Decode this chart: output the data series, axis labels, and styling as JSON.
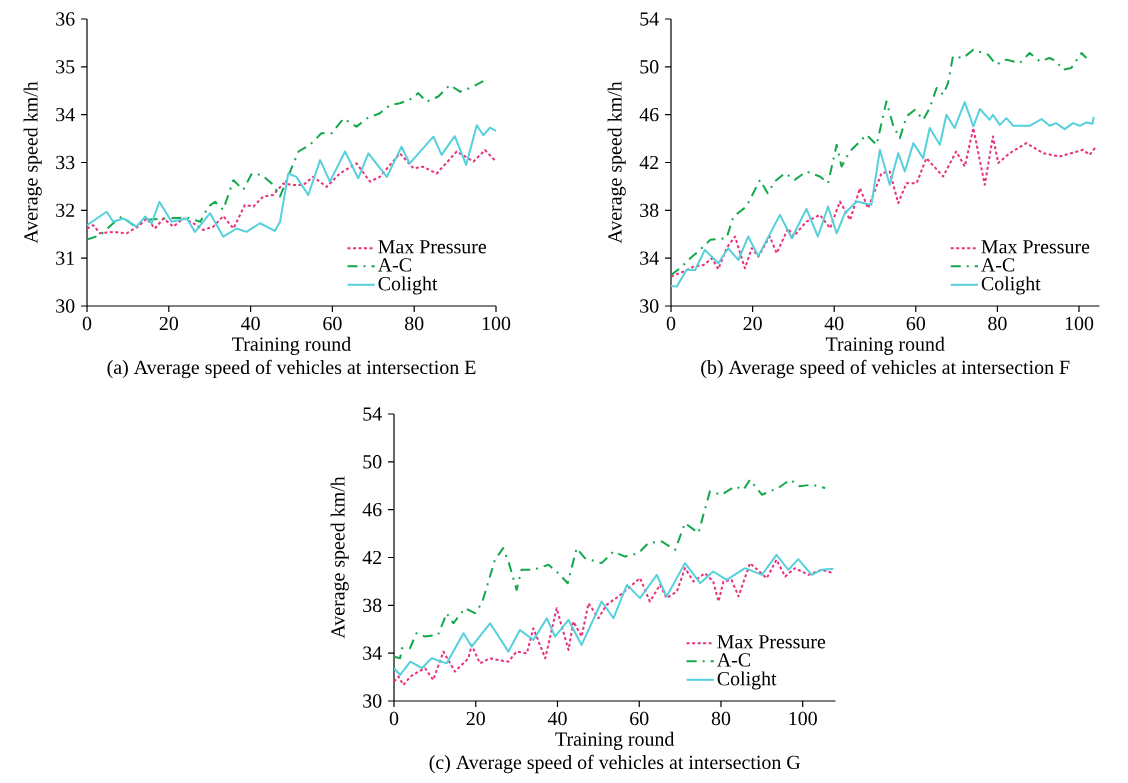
{
  "chart_data": [
    {
      "type": "line",
      "title": "(a) Average speed of vehicles at intersection E",
      "xlabel": "Training round",
      "ylabel": "Average speed km/h",
      "xlim": [
        0,
        100
      ],
      "ylim": [
        30,
        36
      ],
      "xticks": [
        0,
        20,
        40,
        60,
        80,
        100
      ],
      "yticks": [
        30,
        31,
        32,
        33,
        34,
        35,
        36
      ],
      "legend": "bottom right",
      "series": [
        {
          "name": "Max Pressure",
          "color": "#e8307f",
          "line_style": "dotted",
          "x": [
            0,
            1.5,
            3.2,
            6.4,
            9.7,
            12.5,
            14.6,
            16.6,
            18.7,
            21.1,
            23.6,
            26,
            28.4,
            30.9,
            33.3,
            35.8,
            38.6,
            40.7,
            43.1,
            45.5,
            48,
            50.4,
            52.9,
            55.3,
            58.6,
            61.8,
            65.9,
            69.2,
            71.6,
            76.5,
            79.8,
            82.2,
            85.5,
            90.4,
            94.5,
            97.3,
            100
          ],
          "values": [
            31.62,
            31.69,
            31.52,
            31.55,
            31.52,
            31.66,
            31.83,
            31.62,
            31.83,
            31.66,
            31.83,
            31.73,
            31.59,
            31.66,
            31.88,
            31.62,
            32.11,
            32.08,
            32.29,
            32.32,
            32.56,
            32.53,
            32.53,
            32.7,
            32.49,
            32.77,
            32.98,
            32.6,
            32.7,
            33.19,
            32.88,
            32.91,
            32.77,
            33.23,
            33.02,
            33.26,
            33.02
          ]
        },
        {
          "name": "A-C",
          "color": "#13a84b",
          "line_style": "dashdot",
          "x": [
            0,
            3.2,
            6.4,
            8.5,
            11.3,
            14.6,
            18.7,
            24.4,
            27.7,
            29.7,
            31.3,
            33.3,
            35.8,
            38.2,
            40.3,
            42.7,
            45.6,
            47.2,
            50,
            51.7,
            54.5,
            57.3,
            59.8,
            62.7,
            65.9,
            68.4,
            71.6,
            74.1,
            76.5,
            78.9,
            81,
            83,
            85.9,
            88.7,
            91.2,
            94,
            96.9
          ],
          "values": [
            31.39,
            31.48,
            31.73,
            31.87,
            31.69,
            31.8,
            31.83,
            31.85,
            31.76,
            32.08,
            32.18,
            32.01,
            32.63,
            32.43,
            32.77,
            32.74,
            32.53,
            32.29,
            32.88,
            33.23,
            33.37,
            33.61,
            33.61,
            33.92,
            33.75,
            33.92,
            34.03,
            34.2,
            34.24,
            34.31,
            34.45,
            34.27,
            34.38,
            34.62,
            34.48,
            34.57,
            34.7
          ]
        },
        {
          "name": "Colight",
          "color": "#55d0dc",
          "line_style": "solid",
          "x": [
            0,
            2.4,
            4.8,
            6.4,
            8.9,
            12.1,
            14.2,
            15.8,
            17.7,
            20.7,
            24.4,
            26.4,
            30.1,
            33.3,
            36.6,
            39,
            42.3,
            45.9,
            47.2,
            49.2,
            51.2,
            54.1,
            57,
            59.4,
            63.1,
            66.3,
            68.8,
            73.3,
            76.9,
            78.9,
            84.7,
            86.7,
            89.9,
            92.7,
            95.3,
            96.9,
            98.5,
            100
          ],
          "values": [
            31.69,
            31.83,
            31.97,
            31.76,
            31.83,
            31.66,
            31.87,
            31.73,
            32.18,
            31.76,
            31.83,
            31.55,
            31.94,
            31.45,
            31.62,
            31.55,
            31.73,
            31.57,
            31.76,
            32.77,
            32.7,
            32.32,
            33.05,
            32.6,
            33.23,
            32.67,
            33.19,
            32.7,
            33.33,
            32.98,
            33.54,
            33.16,
            33.55,
            32.95,
            33.78,
            33.57,
            33.73,
            33.66
          ]
        }
      ]
    },
    {
      "type": "line",
      "title": "(b) Average speed of vehicles at intersection F",
      "xlabel": "Training round",
      "ylabel": "Average speed km/h",
      "xlim": [
        0,
        105
      ],
      "ylim": [
        30,
        54
      ],
      "xticks": [
        0,
        20,
        40,
        60,
        80,
        100
      ],
      "yticks": [
        30,
        34,
        38,
        42,
        46,
        50,
        54
      ],
      "legend": "bottom right",
      "series": [
        {
          "name": "Max Pressure",
          "color": "#e8307f",
          "line_style": "dotted",
          "x": [
            0,
            3,
            5.5,
            8,
            10,
            11.6,
            13.6,
            15.7,
            18.1,
            19.8,
            21.4,
            24.2,
            25.9,
            28.7,
            30,
            33.2,
            36.5,
            39,
            41.4,
            43.9,
            46.3,
            48.3,
            51.6,
            53.6,
            55.7,
            57.7,
            60.2,
            62.6,
            66.7,
            69.9,
            72,
            74.1,
            76.9,
            78.9,
            80.2,
            83,
            87.1,
            91.2,
            95.2,
            101,
            102.6,
            104.2
          ],
          "values": [
            32.46,
            32.87,
            33.29,
            33.43,
            33.99,
            33.07,
            34.83,
            35.81,
            33.15,
            34.83,
            34.13,
            35.81,
            34.41,
            36.5,
            35.81,
            37.06,
            37.62,
            36.5,
            38.74,
            37.2,
            39.85,
            38.18,
            41.11,
            41.25,
            38.6,
            40.27,
            40.27,
            42.36,
            40.83,
            42.92,
            41.67,
            44.88,
            40.13,
            44.18,
            41.95,
            42.78,
            43.62,
            42.78,
            42.5,
            43.06,
            42.64,
            43.34
          ]
        },
        {
          "name": "A-C",
          "color": "#13a84b",
          "line_style": "dashdot",
          "x": [
            0,
            2.2,
            4.7,
            7.1,
            9.6,
            13.6,
            15.3,
            18.5,
            21.8,
            23.7,
            25.4,
            27.9,
            30.3,
            33.2,
            36.5,
            38.5,
            40.6,
            41.8,
            43.8,
            45.5,
            47.9,
            50.4,
            52.8,
            54.5,
            56.1,
            57.7,
            59.8,
            61.8,
            63.4,
            65.1,
            66.7,
            67.9,
            69.1,
            71.6,
            74.1,
            77.7,
            79.7,
            82.2,
            85.5,
            87.9,
            90.4,
            92.8,
            94.4,
            96.1,
            98.1,
            100.6,
            101.8
          ],
          "values": [
            32.6,
            33.15,
            33.99,
            34.69,
            35.53,
            35.67,
            37.48,
            38.32,
            40.55,
            39.43,
            40.41,
            41.11,
            40.55,
            41.25,
            40.83,
            40.27,
            43.48,
            41.67,
            42.92,
            43.48,
            44.32,
            43.48,
            47.11,
            45.02,
            44.04,
            45.85,
            46.41,
            45.57,
            46.55,
            48.23,
            47.67,
            48.64,
            50.88,
            50.74,
            51.43,
            51.02,
            50.18,
            50.6,
            50.32,
            51.16,
            50.46,
            50.74,
            50.46,
            49.76,
            49.9,
            51.16,
            50.74
          ]
        },
        {
          "name": "Colight",
          "color": "#55d0dc",
          "line_style": "solid",
          "x": [
            0,
            1.4,
            3.8,
            5.9,
            8.3,
            11.6,
            14,
            16.5,
            18.9,
            21.4,
            26.7,
            29.6,
            33.2,
            36,
            38.5,
            40.6,
            42.6,
            45.5,
            49.1,
            51.2,
            53.6,
            55.7,
            57.3,
            59.4,
            61.8,
            63.4,
            65.9,
            67.5,
            69.5,
            72,
            74.1,
            75.7,
            78.1,
            78.9,
            80.6,
            82.2,
            83.9,
            87.9,
            90.8,
            92.8,
            94.4,
            96.5,
            98.5,
            100.2,
            101.8,
            103.3,
            103.6
          ],
          "values": [
            31.67,
            31.62,
            33.01,
            33.01,
            34.69,
            33.57,
            34.83,
            33.85,
            35.81,
            34.19,
            37.62,
            35.67,
            38.12,
            35.81,
            38.32,
            36.08,
            37.76,
            38.74,
            38.46,
            43.06,
            40.13,
            42.78,
            41.25,
            43.62,
            42.36,
            44.88,
            43.48,
            45.99,
            44.88,
            47.05,
            45.02,
            46.47,
            45.57,
            45.99,
            45.15,
            45.71,
            45.07,
            45.07,
            45.63,
            45.07,
            45.29,
            44.79,
            45.29,
            45.07,
            45.35,
            45.24,
            45.8
          ]
        }
      ]
    },
    {
      "type": "line",
      "title": "(c) Average speed of vehicles at intersection G",
      "xlabel": "Training round",
      "ylabel": "Average speed km/h",
      "xlim": [
        0,
        108
      ],
      "ylim": [
        30,
        54
      ],
      "xticks": [
        0,
        20,
        40,
        60,
        80,
        100
      ],
      "yticks": [
        30,
        34,
        38,
        42,
        46,
        50,
        54
      ],
      "legend": "bottom right",
      "series": [
        {
          "name": "Max Pressure",
          "color": "#e8307f",
          "line_style": "dotted",
          "x": [
            0,
            1.1,
            2.3,
            4,
            6,
            7.6,
            9.6,
            12.1,
            14.9,
            18.2,
            19,
            21,
            23.5,
            25.5,
            28,
            30,
            32.5,
            34.1,
            37,
            39.8,
            41.4,
            42.7,
            43.9,
            45.9,
            47.6,
            50,
            52,
            54.9,
            57.3,
            60.2,
            62.6,
            65.1,
            66.7,
            69.2,
            71.2,
            73.3,
            76.1,
            78.1,
            79.4,
            80.6,
            82.6,
            84.3,
            87.1,
            91.2,
            93.6,
            95.7,
            98.1,
            101.4,
            104.6,
            107.5
          ],
          "values": [
            31.62,
            32.04,
            31.34,
            32.04,
            32.46,
            32.74,
            31.76,
            34.13,
            32.46,
            33.57,
            34.69,
            33.15,
            33.57,
            33.43,
            33.29,
            34.13,
            33.99,
            36.08,
            33.57,
            37.76,
            35.81,
            34.27,
            36.64,
            35.39,
            38.18,
            36.92,
            38.04,
            38.74,
            39.43,
            40.27,
            38.32,
            39.71,
            38.6,
            39.15,
            41.11,
            39.99,
            40.69,
            39.99,
            38.32,
            39.99,
            40.13,
            38.74,
            41.53,
            40.27,
            41.81,
            40.41,
            41.11,
            40.55,
            40.97,
            40.69
          ]
        },
        {
          "name": "A-C",
          "color": "#13a84b",
          "line_style": "dashdot",
          "x": [
            0,
            1.5,
            1.9,
            3.9,
            5.5,
            7.6,
            10.8,
            12.9,
            14.5,
            17.4,
            19.8,
            21.5,
            23.1,
            24.7,
            26.7,
            28,
            30,
            31.2,
            34.1,
            37.8,
            40.2,
            42.5,
            44.7,
            46.7,
            50.8,
            53.7,
            56.5,
            59.8,
            62.2,
            65.5,
            68.8,
            70,
            71.2,
            74.5,
            75.7,
            77.3,
            80.2,
            83.4,
            85.5,
            87.1,
            90,
            94,
            96.9,
            99.3,
            102.2,
            105.5
          ],
          "values": [
            33.71,
            33.57,
            34.41,
            34.41,
            35.67,
            35.39,
            35.53,
            37.34,
            36.5,
            37.76,
            37.34,
            38.18,
            39.99,
            41.81,
            42.78,
            41.67,
            39.29,
            40.97,
            40.97,
            41.39,
            40.69,
            39.85,
            42.78,
            41.95,
            41.53,
            42.5,
            42.08,
            42.36,
            43.2,
            43.34,
            42.64,
            43.76,
            44.88,
            44.04,
            45.57,
            47.53,
            47.25,
            47.95,
            47.67,
            48.5,
            47.25,
            47.81,
            48.5,
            47.95,
            48.09,
            47.81
          ]
        },
        {
          "name": "Colight",
          "color": "#55d0dc",
          "line_style": "solid",
          "x": [
            0,
            1.5,
            4,
            6.8,
            9.2,
            12.9,
            17,
            19,
            23.5,
            28,
            30.8,
            34.1,
            37.4,
            39.4,
            42.7,
            45.9,
            50.8,
            53.7,
            57,
            60.2,
            64.3,
            66.7,
            71.2,
            74.9,
            78.1,
            81.4,
            85.9,
            90,
            93.6,
            96.5,
            98.9,
            102.2,
            104.6,
            107.5
          ],
          "values": [
            32.74,
            32.18,
            33.29,
            32.74,
            33.57,
            33.15,
            35.67,
            34.55,
            36.5,
            34.13,
            35.94,
            35.11,
            36.92,
            35.39,
            36.78,
            34.69,
            38.32,
            36.92,
            39.71,
            38.6,
            40.55,
            38.74,
            41.53,
            39.85,
            40.83,
            40.13,
            41.11,
            40.55,
            42.22,
            40.97,
            41.86,
            40.55,
            40.97,
            41.05
          ]
        }
      ]
    }
  ]
}
